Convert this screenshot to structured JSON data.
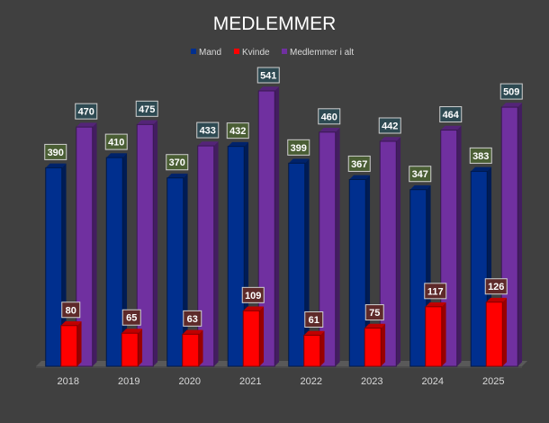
{
  "chart_data": {
    "type": "bar",
    "title": "MEDLEMMER",
    "xlabel": "",
    "ylabel": "",
    "ylim": [
      0,
      541
    ],
    "grid": false,
    "legend_position": "top",
    "categories": [
      "2018",
      "2019",
      "2020",
      "2021",
      "2022",
      "2023",
      "2024",
      "2025"
    ],
    "series": [
      {
        "name": "Mand",
        "color": "#002f8e",
        "label_bg": "#4a5e34",
        "values": [
          390,
          410,
          370,
          432,
          399,
          367,
          347,
          383
        ]
      },
      {
        "name": "Kvinde",
        "color": "#ff0000",
        "label_bg": "#5e2a2a",
        "values": [
          80,
          65,
          63,
          109,
          61,
          75,
          117,
          126
        ]
      },
      {
        "name": "Medlemmer i alt",
        "color": "#7030a0",
        "label_bg": "#2e4a52",
        "values": [
          470,
          475,
          433,
          541,
          460,
          442,
          464,
          509
        ]
      }
    ]
  }
}
